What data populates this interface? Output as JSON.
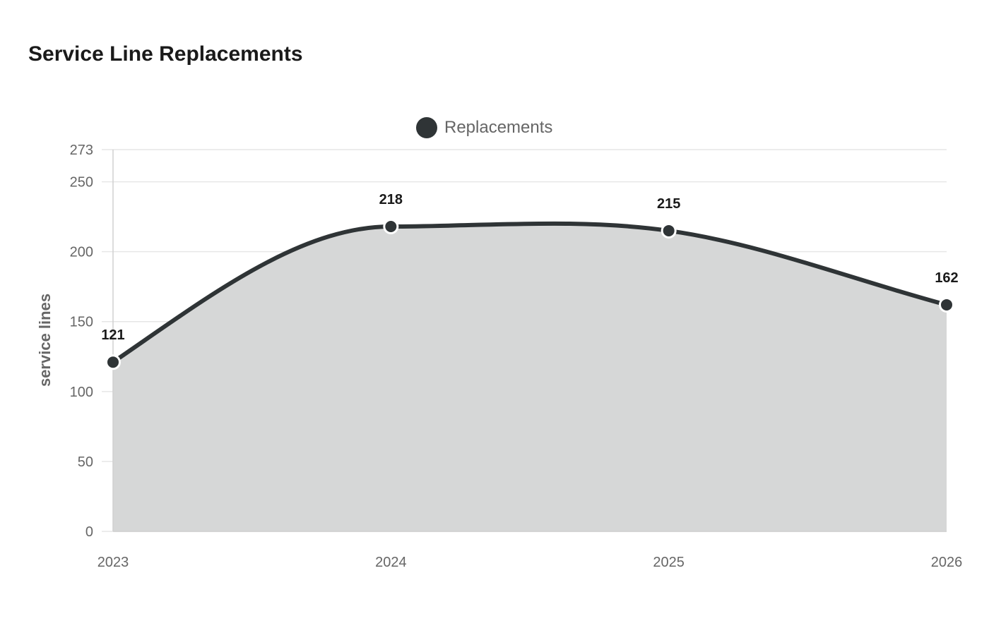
{
  "chart_data": {
    "type": "area",
    "title": "Service Line Replacements",
    "xlabel": "",
    "ylabel": "service lines",
    "categories": [
      "2023",
      "2024",
      "2025",
      "2026"
    ],
    "series": [
      {
        "name": "Replacements",
        "values": [
          121,
          218,
          215,
          162
        ]
      }
    ],
    "ylim": [
      0,
      273
    ],
    "yticks": [
      0,
      50,
      100,
      150,
      200,
      250,
      273
    ],
    "grid": true,
    "legend": "top-center",
    "colors": {
      "line": "#2f3436",
      "fill": "#d6d7d7",
      "grid": "#e6e6e6",
      "axis": "#d0d0d0"
    }
  }
}
